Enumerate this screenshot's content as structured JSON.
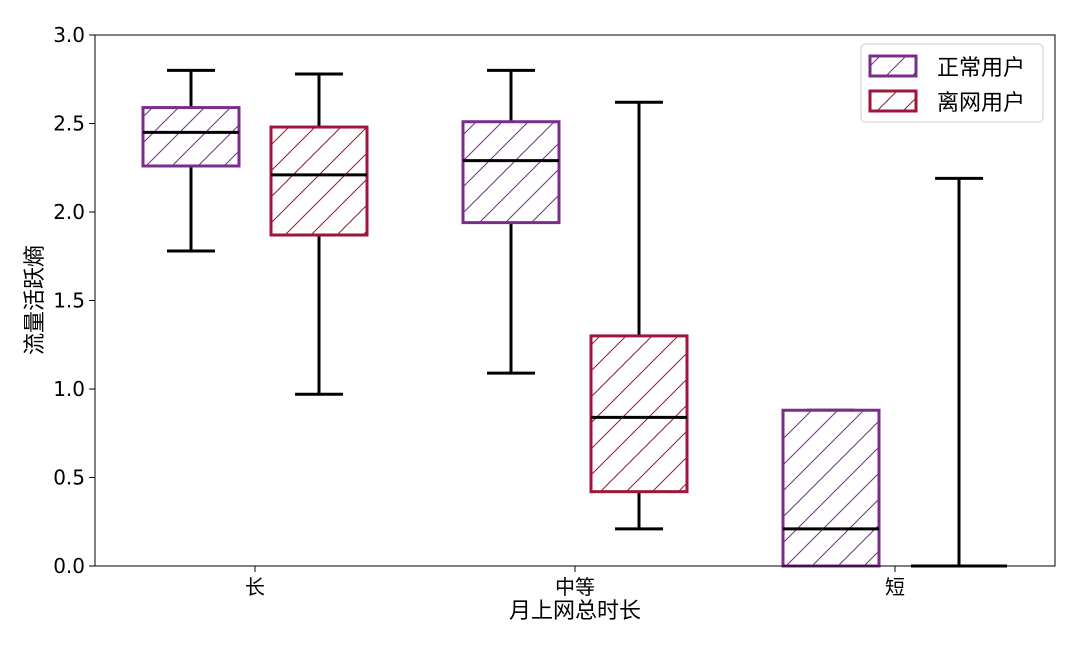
{
  "chart_data": {
    "type": "boxplot",
    "xlabel": "月上网总时长",
    "ylabel": "流量活跃熵",
    "ylim": [
      0,
      3.0
    ],
    "yticks": [
      "0.0",
      "0.5",
      "1.0",
      "1.5",
      "2.0",
      "2.5",
      "3.0"
    ],
    "categories": [
      "长",
      "中等",
      "短"
    ],
    "legend_position": "top-right",
    "series": [
      {
        "name": "正常用户",
        "color": "#7b2d8e",
        "hatch": "diagonal",
        "boxes": [
          {
            "whislo": 1.78,
            "q1": 2.26,
            "med": 2.45,
            "q3": 2.59,
            "whishi": 2.8
          },
          {
            "whislo": 1.09,
            "q1": 1.94,
            "med": 2.29,
            "q3": 2.51,
            "whishi": 2.8
          },
          {
            "whislo": 0.0,
            "q1": 0.0,
            "med": 0.21,
            "q3": 0.88,
            "whishi": 0.88
          }
        ]
      },
      {
        "name": "离网用户",
        "color": "#a0163a",
        "hatch": "diagonal",
        "boxes": [
          {
            "whislo": 0.97,
            "q1": 1.87,
            "med": 2.21,
            "q3": 2.48,
            "whishi": 2.78
          },
          {
            "whislo": 0.21,
            "q1": 0.42,
            "med": 0.84,
            "q3": 1.3,
            "whishi": 2.62
          },
          {
            "whislo": 0.0,
            "q1": 0.0,
            "med": 0.0,
            "q3": 0.0,
            "whishi": 2.19
          }
        ]
      }
    ]
  }
}
